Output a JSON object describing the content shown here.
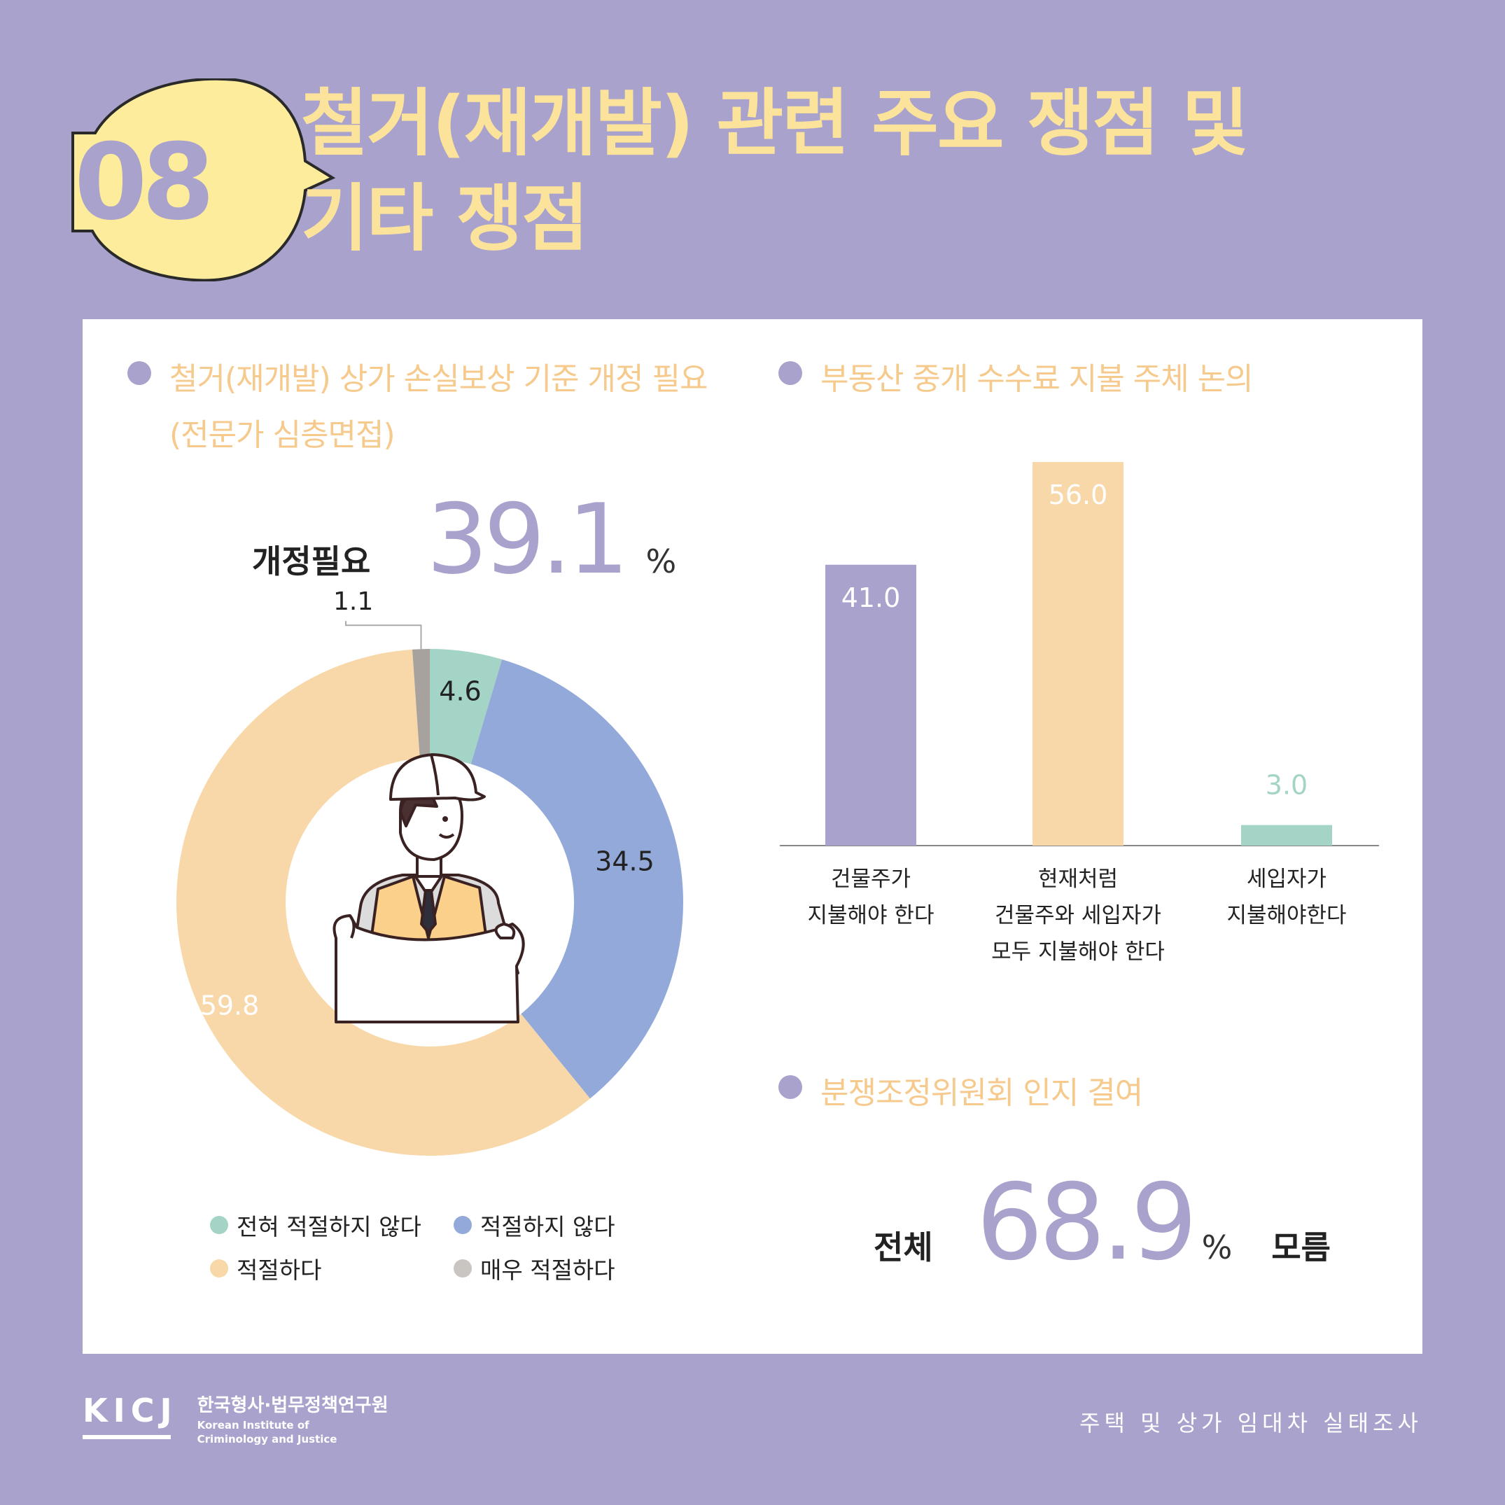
{
  "header": {
    "number": "08",
    "title_line1": "철거(재개발) 관련 주요 쟁점 및",
    "title_line2": "기타 쟁점"
  },
  "section_left": {
    "heading_line1": "철거(재개발) 상가 손실보상 기준 개정 필요",
    "heading_line2": "(전문가 심층면접)",
    "highlight_label": "개정필요",
    "highlight_value": "39.1",
    "highlight_unit": "%"
  },
  "section_right_top": {
    "heading": "부동산 중개 수수료 지불 주체 논의"
  },
  "section_right_bottom": {
    "heading": "분쟁조정위원회 인지 결여",
    "prefix": "전체",
    "value": "68.9",
    "unit": "%",
    "suffix": "모름"
  },
  "legend": [
    {
      "label": "전혀 적절하지 않다",
      "color": "#a3d4c6"
    },
    {
      "label": "적절하지 않다",
      "color": "#92a9d9"
    },
    {
      "label": "적절하다",
      "color": "#f8d7a8"
    },
    {
      "label": "매우 적절하다",
      "color": "#c9c5c1"
    }
  ],
  "chart_data": [
    {
      "type": "pie",
      "title": "철거(재개발) 상가 손실보상 기준 개정 필요",
      "slices": [
        {
          "label": "전혀 적절하지 않다",
          "value": 4.6,
          "color": "#a3d4c6"
        },
        {
          "label": "적절하지 않다",
          "value": 34.5,
          "color": "#92a9d9"
        },
        {
          "label": "적절하다",
          "value": 59.8,
          "color": "#f8d7a8"
        },
        {
          "label": "매우 적절하다",
          "value": 1.1,
          "color": "#a8a29e"
        }
      ]
    },
    {
      "type": "bar",
      "title": "부동산 중개 수수료 지불 주체 논의",
      "categories": [
        "건물주가\n지불해야 한다",
        "현재처럼\n건물주와 세입자가\n모두 지불해야 한다",
        "세입자가\n지불해야한다"
      ],
      "values": [
        41.0,
        56.0,
        3.0
      ],
      "value_labels": [
        "41.0",
        "56.0",
        "3.0"
      ],
      "colors": [
        "#a8a2cc",
        "#f8d7a8",
        "#a3d4c6"
      ],
      "ylim": [
        0,
        56.0
      ]
    }
  ],
  "footer": {
    "logo": "KICJ",
    "org_kr": "한국형사·법무정책연구원",
    "org_en_1": "Korean Institute of",
    "org_en_2": "Criminology and Justice",
    "right_text": "주택 및 상가 임대차 실태조사"
  }
}
